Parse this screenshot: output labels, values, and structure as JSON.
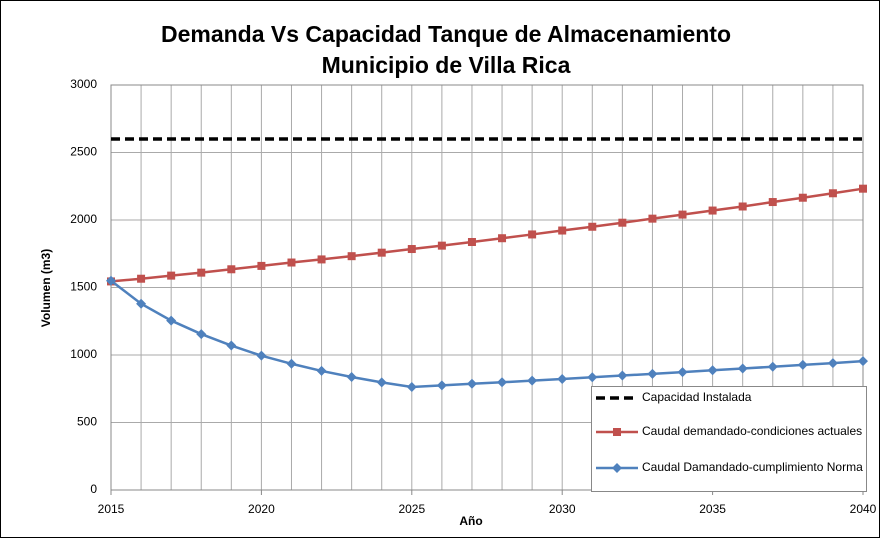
{
  "chart_data": {
    "type": "line",
    "title": "Demanda Vs Capacidad Tanque de Almacenamiento",
    "subtitle": "Municipio de Villa Rica",
    "x_label": "Año",
    "y_label": "Volumen (m3)",
    "x": [
      2015,
      2016,
      2017,
      2018,
      2019,
      2020,
      2021,
      2022,
      2023,
      2024,
      2025,
      2026,
      2027,
      2028,
      2029,
      2030,
      2031,
      2032,
      2033,
      2034,
      2035,
      2036,
      2037,
      2038,
      2039,
      2040
    ],
    "series": [
      {
        "name": "Capacidad Instalada",
        "color": "#000000",
        "style": "dashed",
        "marker": "none",
        "values": [
          2600,
          2600,
          2600,
          2600,
          2600,
          2600,
          2600,
          2600,
          2600,
          2600,
          2600,
          2600,
          2600,
          2600,
          2600,
          2600,
          2600,
          2600,
          2600,
          2600,
          2600,
          2600,
          2600,
          2600,
          2600,
          2600
        ]
      },
      {
        "name": "Caudal demandado-condiciones actuales",
        "color": "#c0504d",
        "style": "solid",
        "marker": "square",
        "values": [
          1545,
          1565,
          1588,
          1610,
          1635,
          1660,
          1685,
          1708,
          1732,
          1758,
          1785,
          1810,
          1837,
          1865,
          1893,
          1922,
          1950,
          1980,
          2010,
          2040,
          2070,
          2100,
          2133,
          2165,
          2198,
          2232
        ]
      },
      {
        "name": "Caudal Damandado-cumplimiento Norma",
        "color": "#4f81bd",
        "style": "solid",
        "marker": "diamond",
        "values": [
          1550,
          1380,
          1255,
          1155,
          1070,
          995,
          935,
          882,
          837,
          797,
          763,
          775,
          787,
          798,
          810,
          822,
          835,
          848,
          860,
          873,
          887,
          900,
          913,
          927,
          940,
          955
        ]
      }
    ],
    "xlim": [
      2015,
      2040
    ],
    "xticks": [
      2015,
      2020,
      2025,
      2030,
      2035,
      2040
    ],
    "ylim": [
      0,
      3000
    ],
    "yticks": [
      0,
      500,
      1000,
      1500,
      2000,
      2500,
      3000
    ],
    "grid": true,
    "legend": "lower right"
  }
}
